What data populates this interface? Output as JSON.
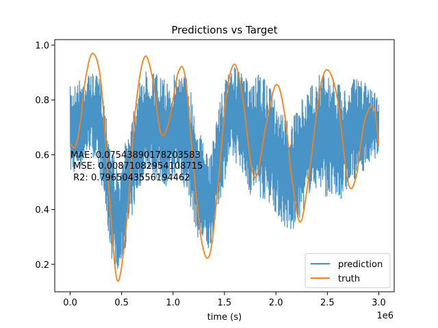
{
  "chart_data": {
    "type": "line",
    "title": "Predictions vs Target",
    "xlabel": "time (s)",
    "ylabel": "",
    "x_offset_label": "1e6",
    "xlim": [
      -0.15,
      3.15
    ],
    "ylim": [
      0.1,
      1.02
    ],
    "x_ticks": [
      0.0,
      0.5,
      1.0,
      1.5,
      2.0,
      2.5,
      3.0
    ],
    "x_tick_labels": [
      "0.0",
      "0.5",
      "1.0",
      "1.5",
      "2.0",
      "2.5",
      "3.0"
    ],
    "y_ticks": [
      0.2,
      0.4,
      0.6,
      0.8,
      1.0
    ],
    "y_tick_labels": [
      "0.2",
      "0.4",
      "0.6",
      "0.8",
      "1.0"
    ],
    "grid": false,
    "legend_position": "bottom-right",
    "annotation_lines": [
      "MAE: 0.07543890178203583",
      " MSE: 0.008710829541087​15",
      " R2: 0.7965043556194462"
    ],
    "series": [
      {
        "name": "prediction",
        "color": "#3f8ec4",
        "style": "noisy",
        "x": [
          0.0,
          0.1,
          0.2,
          0.3,
          0.4,
          0.48,
          0.55,
          0.65,
          0.75,
          0.85,
          0.95,
          1.05,
          1.15,
          1.25,
          1.35,
          1.45,
          1.55,
          1.65,
          1.75,
          1.85,
          1.95,
          2.05,
          2.15,
          2.25,
          2.35,
          2.45,
          2.55,
          2.65,
          2.75,
          2.85,
          3.0
        ],
        "y_upper": [
          0.85,
          0.88,
          0.9,
          0.88,
          0.65,
          0.5,
          0.68,
          0.84,
          0.92,
          0.9,
          0.86,
          0.92,
          0.89,
          0.7,
          0.58,
          0.8,
          0.93,
          0.91,
          0.86,
          0.9,
          0.84,
          0.76,
          0.72,
          0.8,
          0.86,
          0.91,
          0.89,
          0.84,
          0.88,
          0.87,
          0.82
        ],
        "y_lower": [
          0.52,
          0.55,
          0.62,
          0.5,
          0.22,
          0.17,
          0.28,
          0.45,
          0.55,
          0.5,
          0.48,
          0.52,
          0.44,
          0.28,
          0.24,
          0.42,
          0.58,
          0.56,
          0.45,
          0.44,
          0.42,
          0.35,
          0.3,
          0.38,
          0.48,
          0.46,
          0.42,
          0.44,
          0.5,
          0.54,
          0.6
        ]
      },
      {
        "name": "truth",
        "color": "#ff7f0e",
        "style": "smooth",
        "x": [
          0.0,
          0.05,
          0.1,
          0.15,
          0.22,
          0.3,
          0.38,
          0.46,
          0.55,
          0.63,
          0.72,
          0.8,
          0.88,
          0.96,
          1.05,
          1.12,
          1.2,
          1.28,
          1.36,
          1.44,
          1.52,
          1.6,
          1.68,
          1.76,
          1.82,
          1.9,
          2.0,
          2.08,
          2.16,
          2.24,
          2.33,
          2.42,
          2.5,
          2.6,
          2.7,
          2.78,
          2.86,
          2.95,
          3.0
        ],
        "y": [
          0.64,
          0.63,
          0.72,
          0.88,
          0.97,
          0.86,
          0.45,
          0.14,
          0.36,
          0.75,
          0.955,
          0.88,
          0.68,
          0.72,
          0.9,
          0.88,
          0.55,
          0.28,
          0.24,
          0.5,
          0.82,
          0.93,
          0.8,
          0.56,
          0.53,
          0.7,
          0.855,
          0.76,
          0.5,
          0.355,
          0.55,
          0.82,
          0.91,
          0.8,
          0.5,
          0.52,
          0.72,
          0.775,
          0.63
        ]
      }
    ]
  }
}
